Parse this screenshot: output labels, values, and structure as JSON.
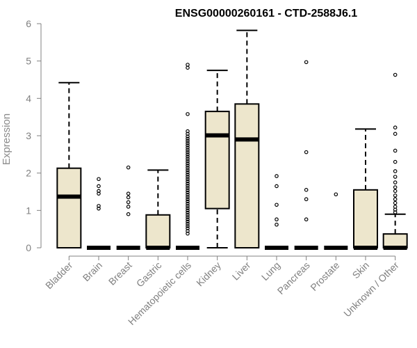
{
  "chart_data": {
    "type": "boxplot",
    "title": "ENSG00000260161 - CTD-2588J6.1",
    "xlabel": "",
    "ylabel": "Expression",
    "ylim": [
      0,
      6
    ],
    "yticks": [
      "0",
      "1",
      "2",
      "3",
      "4",
      "5",
      "6"
    ],
    "grid": false,
    "box_fill": "#ede6cc",
    "categories": [
      "Bladder",
      "Brain",
      "Breast",
      "Gastric",
      "Hematopoietic cells",
      "Kidney",
      "Liver",
      "Lung",
      "Pancreas",
      "Prostate",
      "Skin",
      "Unknown / Other"
    ],
    "boxes": [
      {
        "min": 0,
        "q1": 0,
        "median": 1.37,
        "q3": 2.13,
        "max": 4.42,
        "outliers": []
      },
      {
        "min": 0,
        "q1": 0,
        "median": 0,
        "q3": 0,
        "max": 0,
        "outliers": [
          1.05,
          1.12,
          1.45,
          1.52,
          1.65,
          1.84
        ]
      },
      {
        "min": 0,
        "q1": 0,
        "median": 0,
        "q3": 0,
        "max": 0,
        "outliers": [
          0.9,
          1.1,
          1.22,
          1.35,
          1.45,
          2.15
        ]
      },
      {
        "min": 0,
        "q1": 0,
        "median": 0,
        "q3": 0.88,
        "max": 2.08,
        "outliers": []
      },
      {
        "min": 0,
        "q1": 0,
        "median": 0,
        "q3": 0,
        "max": 0,
        "outliers": [
          0.38,
          0.45,
          0.52,
          0.58,
          0.64,
          0.7,
          0.76,
          0.82,
          0.88,
          0.94,
          1.0,
          1.06,
          1.12,
          1.18,
          1.24,
          1.3,
          1.36,
          1.42,
          1.48,
          1.54,
          1.6,
          1.66,
          1.72,
          1.78,
          1.84,
          1.9,
          1.96,
          2.02,
          2.08,
          2.14,
          2.2,
          2.26,
          2.32,
          2.38,
          2.44,
          2.5,
          2.56,
          2.62,
          2.68,
          2.74,
          2.8,
          2.86,
          2.92,
          2.98,
          3.05,
          3.12,
          3.58,
          4.82,
          4.9
        ]
      },
      {
        "min": 0,
        "q1": 1.05,
        "median": 3.01,
        "q3": 3.65,
        "max": 4.75,
        "outliers": []
      },
      {
        "min": 0,
        "q1": 0,
        "median": 2.9,
        "q3": 3.85,
        "max": 5.82,
        "outliers": []
      },
      {
        "min": 0,
        "q1": 0,
        "median": 0,
        "q3": 0,
        "max": 0,
        "outliers": [
          0.62,
          0.76,
          1.15,
          1.65,
          1.92
        ]
      },
      {
        "min": 0,
        "q1": 0,
        "median": 0,
        "q3": 0,
        "max": 0,
        "outliers": [
          0.76,
          1.3,
          1.55,
          2.56,
          4.97
        ]
      },
      {
        "min": 0,
        "q1": 0,
        "median": 0,
        "q3": 0,
        "max": 0,
        "outliers": [
          1.43
        ]
      },
      {
        "min": 0,
        "q1": 0,
        "median": 0,
        "q3": 1.55,
        "max": 3.18,
        "outliers": []
      },
      {
        "min": 0,
        "q1": 0,
        "median": 0,
        "q3": 0.37,
        "max": 0.9,
        "outliers": [
          0.95,
          1.02,
          1.1,
          1.2,
          1.3,
          1.4,
          1.52,
          1.62,
          1.75,
          1.9,
          2.05,
          2.3,
          2.6,
          3.05,
          3.22,
          4.63
        ]
      }
    ]
  }
}
